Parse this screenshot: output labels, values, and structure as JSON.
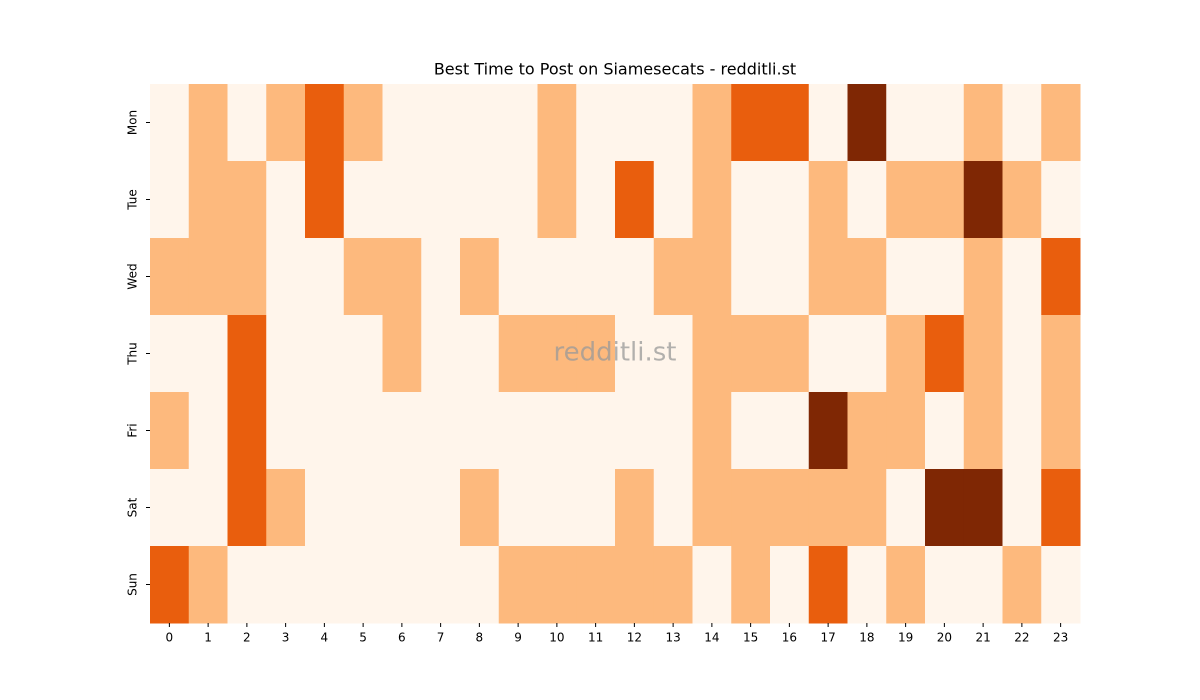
{
  "chart_data": {
    "type": "heatmap",
    "title": "Best Time to Post on Siamesecats - redditli.st",
    "watermark": "redditli.st",
    "x": [
      0,
      1,
      2,
      3,
      4,
      5,
      6,
      7,
      8,
      9,
      10,
      11,
      12,
      13,
      14,
      15,
      16,
      17,
      18,
      19,
      20,
      21,
      22,
      23
    ],
    "categories": [
      "Mon",
      "Tue",
      "Wed",
      "Thu",
      "Fri",
      "Sat",
      "Sun"
    ],
    "values": [
      [
        0,
        1,
        0,
        1,
        2,
        1,
        0,
        0,
        0,
        0,
        1,
        0,
        0,
        0,
        1,
        2,
        2,
        0,
        3,
        0,
        0,
        1,
        0,
        1
      ],
      [
        0,
        1,
        1,
        0,
        2,
        0,
        0,
        0,
        0,
        0,
        1,
        0,
        2,
        0,
        1,
        0,
        0,
        1,
        0,
        1,
        1,
        3,
        1,
        0
      ],
      [
        1,
        1,
        1,
        0,
        0,
        1,
        1,
        0,
        1,
        0,
        0,
        0,
        0,
        1,
        1,
        0,
        0,
        1,
        1,
        0,
        0,
        1,
        0,
        2
      ],
      [
        0,
        0,
        2,
        0,
        0,
        0,
        1,
        0,
        0,
        1,
        1,
        1,
        0,
        0,
        1,
        1,
        1,
        0,
        0,
        1,
        2,
        1,
        0,
        1
      ],
      [
        1,
        0,
        2,
        0,
        0,
        0,
        0,
        0,
        0,
        0,
        0,
        0,
        0,
        0,
        1,
        0,
        0,
        3,
        1,
        1,
        0,
        1,
        0,
        1
      ],
      [
        0,
        0,
        2,
        1,
        0,
        0,
        0,
        0,
        1,
        0,
        0,
        0,
        1,
        0,
        1,
        1,
        1,
        1,
        1,
        0,
        3,
        3,
        0,
        2
      ],
      [
        2,
        1,
        0,
        0,
        0,
        0,
        0,
        0,
        0,
        1,
        1,
        1,
        1,
        1,
        0,
        1,
        0,
        2,
        0,
        1,
        0,
        0,
        1,
        0
      ]
    ],
    "vlim": [
      0,
      3
    ],
    "colormap": [
      "#fff5eb",
      "#fdb97d",
      "#e95e0d",
      "#7f2704"
    ]
  }
}
